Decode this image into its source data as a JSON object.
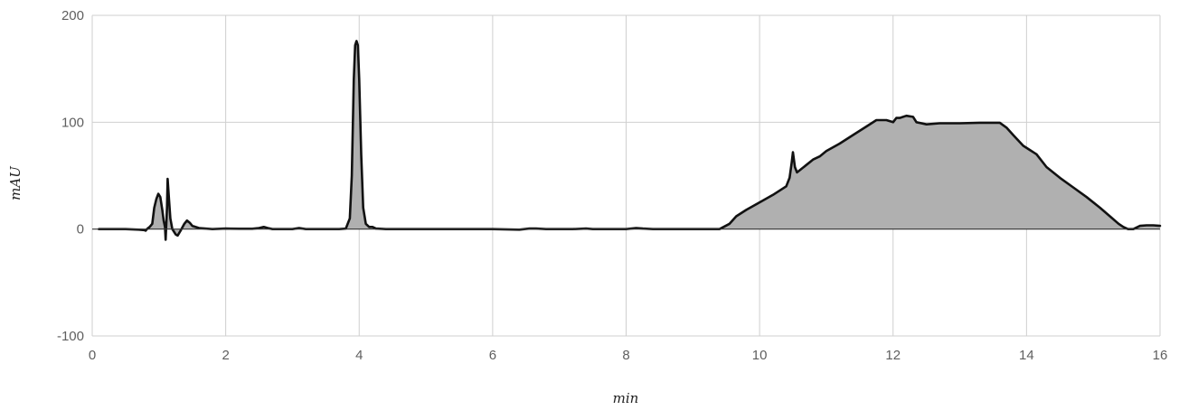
{
  "chart_data": {
    "type": "area",
    "xlabel": "min",
    "ylabel": "mAU",
    "xlim": [
      0,
      16
    ],
    "ylim": [
      -100,
      200
    ],
    "xticks": [
      0,
      2,
      4,
      6,
      8,
      10,
      12,
      14,
      16
    ],
    "yticks": [
      -100,
      0,
      100,
      200
    ],
    "grid": true,
    "legend": "none",
    "colors": {
      "line": "#111111",
      "fill": "#b0b0b0",
      "grid": "#cfcfcf",
      "zero_line": "#333333"
    },
    "series": [
      {
        "points": [
          [
            0.1,
            0
          ],
          [
            0.3,
            0
          ],
          [
            0.5,
            0
          ],
          [
            0.7,
            -0.5
          ],
          [
            0.78,
            -1
          ],
          [
            0.8,
            -1.5
          ],
          [
            0.82,
            0
          ],
          [
            0.86,
            2
          ],
          [
            0.9,
            5
          ],
          [
            0.93,
            20
          ],
          [
            0.96,
            28
          ],
          [
            0.99,
            33
          ],
          [
            1.02,
            30
          ],
          [
            1.05,
            18
          ],
          [
            1.07,
            8
          ],
          [
            1.09,
            2
          ],
          [
            1.1,
            -10
          ],
          [
            1.12,
            20
          ],
          [
            1.13,
            47
          ],
          [
            1.15,
            28
          ],
          [
            1.17,
            10
          ],
          [
            1.2,
            0
          ],
          [
            1.25,
            -5
          ],
          [
            1.28,
            -6
          ],
          [
            1.32,
            -2
          ],
          [
            1.38,
            5
          ],
          [
            1.42,
            8
          ],
          [
            1.46,
            6
          ],
          [
            1.5,
            3
          ],
          [
            1.6,
            1
          ],
          [
            1.8,
            0
          ],
          [
            2.0,
            0.5
          ],
          [
            2.2,
            0.3
          ],
          [
            2.4,
            0.3
          ],
          [
            2.5,
            1
          ],
          [
            2.57,
            2
          ],
          [
            2.63,
            1
          ],
          [
            2.7,
            0
          ],
          [
            3.0,
            0
          ],
          [
            3.1,
            1
          ],
          [
            3.2,
            0
          ],
          [
            3.5,
            0
          ],
          [
            3.7,
            0
          ],
          [
            3.8,
            0.5
          ],
          [
            3.86,
            10
          ],
          [
            3.89,
            50
          ],
          [
            3.92,
            140
          ],
          [
            3.94,
            172
          ],
          [
            3.96,
            176
          ],
          [
            3.98,
            172
          ],
          [
            4.0,
            140
          ],
          [
            4.03,
            70
          ],
          [
            4.06,
            20
          ],
          [
            4.1,
            5
          ],
          [
            4.15,
            2
          ],
          [
            4.2,
            2
          ],
          [
            4.25,
            0.5
          ],
          [
            4.4,
            0
          ],
          [
            5.0,
            0
          ],
          [
            5.5,
            0
          ],
          [
            6.0,
            0
          ],
          [
            6.4,
            -0.5
          ],
          [
            6.55,
            0.5
          ],
          [
            6.65,
            0.5
          ],
          [
            6.8,
            0
          ],
          [
            7.2,
            0
          ],
          [
            7.4,
            0.5
          ],
          [
            7.5,
            0
          ],
          [
            8.0,
            0
          ],
          [
            8.15,
            1
          ],
          [
            8.25,
            0.5
          ],
          [
            8.4,
            0
          ],
          [
            9.0,
            0
          ],
          [
            9.4,
            0
          ],
          [
            9.55,
            5
          ],
          [
            9.65,
            12
          ],
          [
            9.8,
            18
          ],
          [
            10.0,
            25
          ],
          [
            10.2,
            32
          ],
          [
            10.4,
            40
          ],
          [
            10.45,
            48
          ],
          [
            10.48,
            62
          ],
          [
            10.5,
            72
          ],
          [
            10.53,
            58
          ],
          [
            10.56,
            53
          ],
          [
            10.6,
            55
          ],
          [
            10.7,
            60
          ],
          [
            10.8,
            65
          ],
          [
            10.9,
            68
          ],
          [
            11.0,
            73
          ],
          [
            11.2,
            80
          ],
          [
            11.4,
            88
          ],
          [
            11.6,
            96
          ],
          [
            11.75,
            102
          ],
          [
            11.9,
            102
          ],
          [
            12.0,
            100
          ],
          [
            12.05,
            104
          ],
          [
            12.1,
            104
          ],
          [
            12.2,
            106
          ],
          [
            12.3,
            105
          ],
          [
            12.35,
            100
          ],
          [
            12.5,
            98
          ],
          [
            12.7,
            99
          ],
          [
            13.0,
            99
          ],
          [
            13.3,
            99.5
          ],
          [
            13.6,
            99.5
          ],
          [
            13.7,
            95
          ],
          [
            13.8,
            88
          ],
          [
            13.95,
            78
          ],
          [
            14.05,
            74
          ],
          [
            14.15,
            70
          ],
          [
            14.3,
            58
          ],
          [
            14.5,
            48
          ],
          [
            14.7,
            39
          ],
          [
            14.9,
            30
          ],
          [
            15.1,
            20
          ],
          [
            15.25,
            12
          ],
          [
            15.38,
            5
          ],
          [
            15.45,
            2
          ],
          [
            15.52,
            0
          ],
          [
            15.6,
            0
          ],
          [
            15.7,
            3
          ],
          [
            15.8,
            3.5
          ],
          [
            15.9,
            3.5
          ],
          [
            16.0,
            3
          ]
        ]
      }
    ]
  }
}
